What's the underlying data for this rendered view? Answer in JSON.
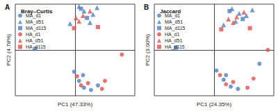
{
  "chart_data": [
    {
      "type": "scatter",
      "title": "Bray–Curtis",
      "annotations": [
        "A"
      ],
      "x_label": "PC1 (47.33%)",
      "y_label": "PC2 (4.78%)",
      "xlim": [
        -0.6,
        0.6
      ],
      "ylim": [
        -0.4,
        0.4
      ],
      "tick_labels": false,
      "grid": false,
      "legend": "upper left",
      "series": [
        {
          "name": "MA_d1",
          "color": "#4e7fc0",
          "marker": "circle",
          "x": [
            -0.01,
            0.04,
            0.09,
            0.16,
            0.23,
            0.08
          ],
          "y": [
            -0.19,
            -0.27,
            -0.33,
            -0.35,
            -0.31,
            -0.22
          ]
        },
        {
          "name": "MA_d51",
          "color": "#4e7fc0",
          "marker": "triangle",
          "x": [
            -0.05,
            0.04,
            0.09,
            0.18,
            0.22,
            0.15
          ],
          "y": [
            0.23,
            0.38,
            0.34,
            0.31,
            0.37,
            0.24
          ]
        },
        {
          "name": "MA_d115",
          "color": "#4e7fc0",
          "marker": "square",
          "x": [
            0.12,
            0.06,
            -0.4
          ],
          "y": [
            0.28,
            0.36,
            0.01
          ]
        },
        {
          "name": "HA_d1",
          "color": "#e0504e",
          "marker": "circle",
          "x": [
            0.02,
            0.13,
            0.27,
            0.47,
            0.06,
            0.3
          ],
          "y": [
            -0.23,
            -0.29,
            -0.34,
            -0.04,
            -0.31,
            -0.27
          ]
        },
        {
          "name": "HA_d51",
          "color": "#e0504e",
          "marker": "triangle",
          "x": [
            0.01,
            0.08,
            0.15,
            0.04
          ],
          "y": [
            0.28,
            0.3,
            0.34,
            0.25
          ]
        },
        {
          "name": "HA_d115",
          "color": "#e0504e",
          "marker": "square",
          "x": [
            0.23,
            -0.01
          ],
          "y": [
            0.2,
            0.19
          ]
        }
      ]
    },
    {
      "type": "scatter",
      "title": "Jaccard",
      "annotations": [
        "B"
      ],
      "x_label": "PC1 (24.35%)",
      "y_label": "PC2 (3.00%)",
      "xlim": [
        -0.5,
        0.5
      ],
      "ylim": [
        -0.4,
        0.4
      ],
      "tick_labels": false,
      "grid": false,
      "legend": "upper left",
      "series": [
        {
          "name": "MA_d1",
          "color": "#4e7fc0",
          "marker": "circle",
          "x": [
            0.02,
            0.08,
            0.14,
            0.2,
            0.38,
            0.1
          ],
          "y": [
            -0.18,
            -0.26,
            -0.32,
            -0.34,
            -0.12,
            -0.22
          ]
        },
        {
          "name": "MA_d51",
          "color": "#4e7fc0",
          "marker": "triangle",
          "x": [
            0.08,
            0.15,
            0.21,
            0.27,
            0.32,
            0.18
          ],
          "y": [
            0.22,
            0.36,
            0.32,
            0.3,
            0.35,
            0.25
          ]
        },
        {
          "name": "MA_d115",
          "color": "#4e7fc0",
          "marker": "square",
          "x": [
            0.24,
            0.13,
            -0.32
          ],
          "y": [
            0.27,
            0.34,
            0.02
          ]
        },
        {
          "name": "HA_d1",
          "color": "#e0504e",
          "marker": "circle",
          "x": [
            0.05,
            0.16,
            0.28,
            0.45,
            0.1,
            0.33
          ],
          "y": [
            -0.22,
            -0.28,
            -0.33,
            0.0,
            -0.3,
            -0.25
          ]
        },
        {
          "name": "HA_d51",
          "color": "#e0504e",
          "marker": "triangle",
          "x": [
            0.12,
            0.19,
            0.25,
            0.16
          ],
          "y": [
            0.27,
            0.29,
            0.33,
            0.24
          ]
        },
        {
          "name": "HA_d115",
          "color": "#e0504e",
          "marker": "square",
          "x": [
            0.3,
            0.06
          ],
          "y": [
            0.19,
            0.18
          ]
        }
      ]
    }
  ]
}
